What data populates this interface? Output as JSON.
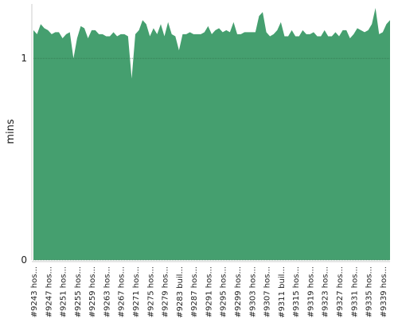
{
  "chart_data": {
    "type": "area",
    "ylabel": "mins",
    "color": "#459f6f",
    "categories": [
      "#9243 hos...",
      null,
      null,
      null,
      "#9247 hos...",
      null,
      null,
      null,
      "#9251 hos...",
      null,
      null,
      null,
      "#9255 hos...",
      null,
      null,
      null,
      "#9259 hos...",
      null,
      null,
      null,
      "#9263 hos...",
      null,
      null,
      null,
      "#9267 hos...",
      null,
      null,
      null,
      "#9271 hos...",
      null,
      null,
      null,
      "#9275 hos...",
      null,
      null,
      null,
      "#9279 hos...",
      null,
      null,
      null,
      "#9283 buil...",
      null,
      null,
      null,
      "#9287 hos...",
      null,
      null,
      null,
      "#9291 hos...",
      null,
      null,
      null,
      "#9295 hos...",
      null,
      null,
      null,
      "#9299 hos...",
      null,
      null,
      null,
      "#9303 hos...",
      null,
      null,
      null,
      "#9307 hos...",
      null,
      null,
      null,
      "#9311 buil...",
      null,
      null,
      null,
      "#9315 hos...",
      null,
      null,
      null,
      "#9319 hos...",
      null,
      null,
      null,
      "#9323 hos...",
      null,
      null,
      null,
      "#9327 hos...",
      null,
      null,
      null,
      "#9331 hos...",
      null,
      null,
      null,
      "#9335 hos...",
      null,
      null,
      null,
      "#9339 hos...",
      null,
      null
    ],
    "values": [
      1.14,
      1.12,
      1.17,
      1.15,
      1.14,
      1.12,
      1.13,
      1.13,
      1.1,
      1.12,
      1.13,
      1.0,
      1.1,
      1.16,
      1.15,
      1.1,
      1.14,
      1.14,
      1.12,
      1.12,
      1.11,
      1.11,
      1.13,
      1.11,
      1.12,
      1.12,
      1.11,
      0.9,
      1.12,
      1.14,
      1.19,
      1.17,
      1.11,
      1.15,
      1.12,
      1.17,
      1.11,
      1.18,
      1.12,
      1.11,
      1.04,
      1.12,
      1.12,
      1.13,
      1.12,
      1.12,
      1.12,
      1.13,
      1.16,
      1.12,
      1.14,
      1.15,
      1.13,
      1.14,
      1.13,
      1.18,
      1.12,
      1.12,
      1.13,
      1.13,
      1.13,
      1.13,
      1.21,
      1.23,
      1.13,
      1.11,
      1.12,
      1.14,
      1.18,
      1.11,
      1.11,
      1.14,
      1.11,
      1.11,
      1.14,
      1.12,
      1.12,
      1.13,
      1.11,
      1.11,
      1.14,
      1.11,
      1.11,
      1.13,
      1.11,
      1.14,
      1.14,
      1.1,
      1.12,
      1.15,
      1.14,
      1.13,
      1.14,
      1.17,
      1.25,
      1.12,
      1.13,
      1.17,
      1.19
    ],
    "ylim": [
      0,
      1.27
    ],
    "yticks": [
      0,
      1
    ],
    "grid": true
  }
}
